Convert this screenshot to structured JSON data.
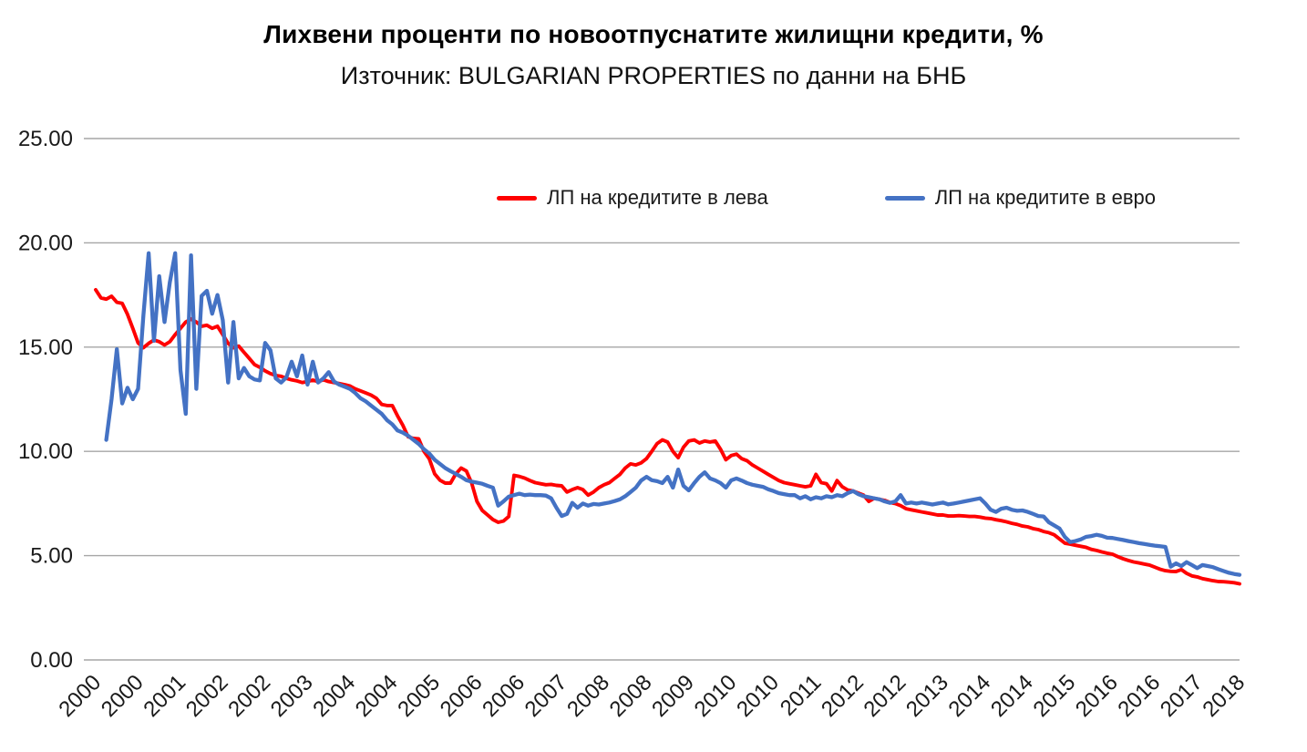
{
  "page": {
    "background": "#FFFFFF"
  },
  "chart_data": {
    "type": "line",
    "title": "Лихвени проценти по новоотпуснатите жилищни кредити, %",
    "subtitle": "Източник: BULGARIAN PROPERTIES по данни на БНБ",
    "xlabel": "",
    "ylabel": "",
    "ylim": [
      0,
      25
    ],
    "y_tick_labels": [
      "0.00",
      "5.00",
      "10.00",
      "15.00",
      "20.00",
      "25.00"
    ],
    "x_tick_labels": [
      "2000",
      "2000",
      "2001",
      "2002",
      "2002",
      "2003",
      "2004",
      "2004",
      "2005",
      "2006",
      "2006",
      "2007",
      "2008",
      "2008",
      "2009",
      "2010",
      "2010",
      "2011",
      "2012",
      "2012",
      "2013",
      "2014",
      "2014",
      "2015",
      "2016",
      "2016",
      "2017",
      "2018"
    ],
    "x_tick_interval_months": 8,
    "x_resolution": "monthly",
    "grid": true,
    "legend_position": "inside-top",
    "colors": {
      "leva": "#FF0000",
      "evro": "#4472C4",
      "gridline": "#A6A6A6",
      "text": "#1A1A1A"
    },
    "series": [
      {
        "name": "ЛП на кредитите в лева",
        "color": "#FF0000",
        "values": [
          17.75,
          17.36,
          17.3,
          17.44,
          17.15,
          17.1,
          16.57,
          15.9,
          15.2,
          14.97,
          15.18,
          15.34,
          15.26,
          15.1,
          15.26,
          15.6,
          15.9,
          16.2,
          16.35,
          16.2,
          16.0,
          16.05,
          15.9,
          16.0,
          15.6,
          15.18,
          14.97,
          15.05,
          14.75,
          14.46,
          14.16,
          14.03,
          13.86,
          13.73,
          13.64,
          13.6,
          13.5,
          13.43,
          13.38,
          13.3,
          13.35,
          13.42,
          13.35,
          13.43,
          13.35,
          13.3,
          13.25,
          13.2,
          13.14,
          13.0,
          12.9,
          12.8,
          12.7,
          12.55,
          12.25,
          12.2,
          12.2,
          11.7,
          11.25,
          10.7,
          10.62,
          10.6,
          10.0,
          9.64,
          8.92,
          8.62,
          8.48,
          8.48,
          8.92,
          9.2,
          9.06,
          8.48,
          7.6,
          7.17,
          6.95,
          6.73,
          6.6,
          6.66,
          6.88,
          8.85,
          8.8,
          8.72,
          8.6,
          8.5,
          8.45,
          8.4,
          8.42,
          8.37,
          8.35,
          8.05,
          8.17,
          8.26,
          8.17,
          7.9,
          8.05,
          8.26,
          8.4,
          8.5,
          8.7,
          8.9,
          9.2,
          9.4,
          9.35,
          9.45,
          9.65,
          10.0,
          10.37,
          10.55,
          10.45,
          10.0,
          9.7,
          10.2,
          10.5,
          10.55,
          10.4,
          10.5,
          10.45,
          10.5,
          10.1,
          9.6,
          9.8,
          9.87,
          9.65,
          9.55,
          9.35,
          9.2,
          9.05,
          8.9,
          8.75,
          8.6,
          8.5,
          8.45,
          8.4,
          8.35,
          8.3,
          8.35,
          8.9,
          8.5,
          8.45,
          8.1,
          8.6,
          8.3,
          8.15,
          8.1,
          8.0,
          7.9,
          7.6,
          7.75,
          7.7,
          7.65,
          7.55,
          7.5,
          7.4,
          7.25,
          7.2,
          7.15,
          7.1,
          7.05,
          7.0,
          6.95,
          6.95,
          6.9,
          6.9,
          6.92,
          6.9,
          6.88,
          6.88,
          6.85,
          6.8,
          6.78,
          6.72,
          6.68,
          6.62,
          6.55,
          6.5,
          6.42,
          6.38,
          6.3,
          6.25,
          6.16,
          6.1,
          6.0,
          5.8,
          5.6,
          5.55,
          5.5,
          5.45,
          5.4,
          5.3,
          5.25,
          5.18,
          5.12,
          5.07,
          4.95,
          4.85,
          4.77,
          4.7,
          4.65,
          4.6,
          4.55,
          4.45,
          4.35,
          4.28,
          4.25,
          4.24,
          4.33,
          4.15,
          4.03,
          3.98,
          3.9,
          3.85,
          3.8,
          3.76,
          3.75,
          3.73,
          3.7,
          3.65
        ]
      },
      {
        "name": "ЛП на кредитите в евро",
        "color": "#4472C4",
        "values": [
          null,
          null,
          10.55,
          12.5,
          14.9,
          12.3,
          13.05,
          12.5,
          13.0,
          16.5,
          19.5,
          15.3,
          18.4,
          16.2,
          18.1,
          19.5,
          13.9,
          11.8,
          19.4,
          13.0,
          17.45,
          17.7,
          16.6,
          17.5,
          16.3,
          13.3,
          16.2,
          13.5,
          14.0,
          13.6,
          13.45,
          13.4,
          15.2,
          14.85,
          13.5,
          13.3,
          13.55,
          14.3,
          13.6,
          14.6,
          13.2,
          14.3,
          13.3,
          13.5,
          13.8,
          13.35,
          13.2,
          13.1,
          13.0,
          12.8,
          12.55,
          12.4,
          12.2,
          12.0,
          11.8,
          11.5,
          11.3,
          11.0,
          10.9,
          10.75,
          10.55,
          10.36,
          10.1,
          9.9,
          9.6,
          9.4,
          9.2,
          9.05,
          8.92,
          8.78,
          8.62,
          8.55,
          8.5,
          8.45,
          8.35,
          8.26,
          7.4,
          7.6,
          7.83,
          7.9,
          7.97,
          7.9,
          7.93,
          7.9,
          7.9,
          7.88,
          7.75,
          7.3,
          6.9,
          7.0,
          7.53,
          7.3,
          7.5,
          7.4,
          7.48,
          7.45,
          7.5,
          7.55,
          7.62,
          7.7,
          7.85,
          8.05,
          8.26,
          8.6,
          8.78,
          8.62,
          8.57,
          8.48,
          8.78,
          8.26,
          9.13,
          8.35,
          8.13,
          8.48,
          8.78,
          9.0,
          8.7,
          8.61,
          8.48,
          8.26,
          8.61,
          8.7,
          8.6,
          8.48,
          8.4,
          8.35,
          8.3,
          8.18,
          8.1,
          8.0,
          7.95,
          7.9,
          7.9,
          7.75,
          7.85,
          7.7,
          7.8,
          7.75,
          7.85,
          7.8,
          7.9,
          7.85,
          8.0,
          8.1,
          7.95,
          7.85,
          7.8,
          7.75,
          7.7,
          7.6,
          7.53,
          7.6,
          7.9,
          7.5,
          7.55,
          7.5,
          7.55,
          7.5,
          7.45,
          7.5,
          7.55,
          7.46,
          7.5,
          7.55,
          7.6,
          7.65,
          7.7,
          7.75,
          7.5,
          7.2,
          7.1,
          7.25,
          7.3,
          7.2,
          7.15,
          7.17,
          7.1,
          7.0,
          6.9,
          6.88,
          6.6,
          6.45,
          6.3,
          5.9,
          5.65,
          5.7,
          5.78,
          5.9,
          5.94,
          6.0,
          5.95,
          5.86,
          5.85,
          5.8,
          5.75,
          5.7,
          5.65,
          5.6,
          5.56,
          5.52,
          5.48,
          5.45,
          5.42,
          4.47,
          4.63,
          4.5,
          4.69,
          4.55,
          4.4,
          4.55,
          4.5,
          4.45,
          4.35,
          4.26,
          4.18,
          4.12,
          4.08
        ]
      }
    ]
  }
}
